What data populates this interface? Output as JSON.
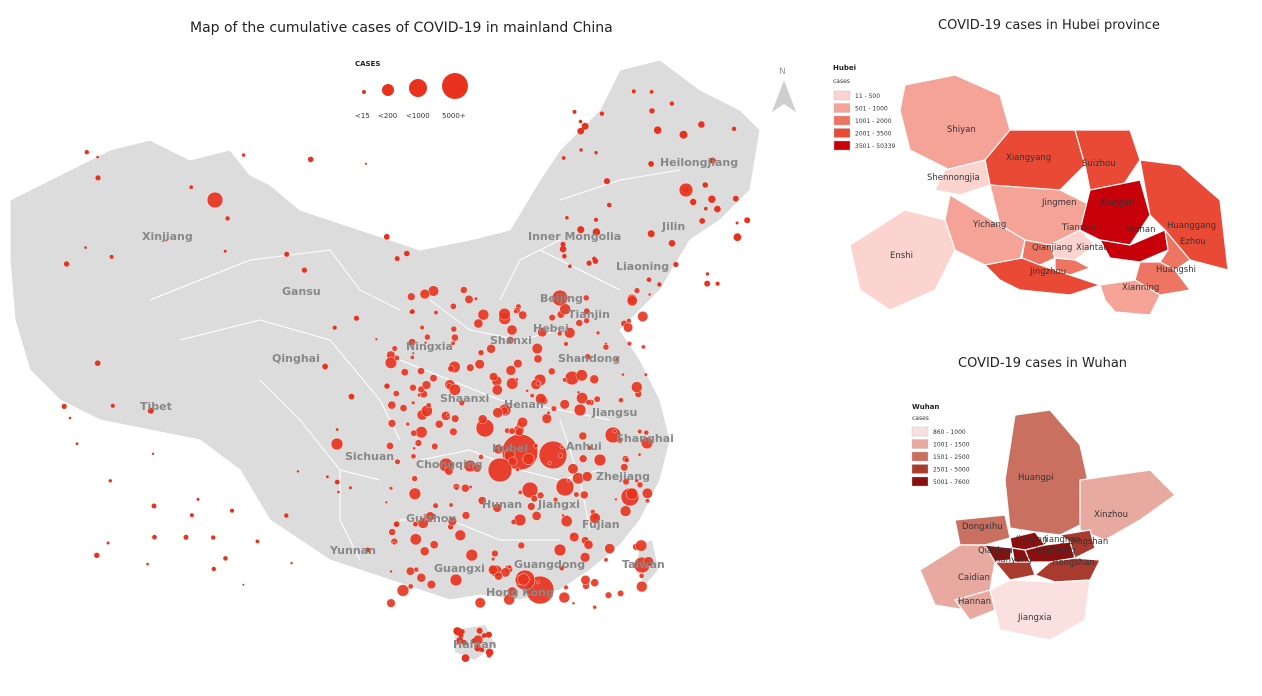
{
  "titles": {
    "main": "Map of the cumulative cases of COVID-19 in mainland China",
    "hubei": "COVID-19 cases in Hubei province",
    "wuhan": "COVID-19 cases in Wuhan"
  },
  "size_legend": {
    "title": "CASES",
    "items": [
      "<15",
      "<200",
      "<1000",
      "5000+"
    ]
  },
  "north_label": "N",
  "china_labels": [
    "Heilongjiang",
    "Jilin",
    "Liaoning",
    "Inner Mongolia",
    "Xinjiang",
    "Gansu",
    "Beijing",
    "Tianjin",
    "Hebei",
    "Ningxia",
    "Shanxi",
    "Shandong",
    "Qinghai",
    "Shaanxi",
    "Henan",
    "Jiangsu",
    "Tibet",
    "Sichuan",
    "Chongqing",
    "Hubei",
    "Anhui",
    "Shanghai",
    "Zhejiang",
    "Hunan",
    "Jiangxi",
    "Guizhou",
    "Fujian",
    "Yunnan",
    "Guangxi",
    "Guangdong",
    "Taiwan",
    "Hong Kong",
    "Hainan"
  ],
  "hubei": {
    "legend_title": "Hubei",
    "legend_subtitle": "cases",
    "legend_items": [
      "11 - 500",
      "501 - 1000",
      "1001 - 2000",
      "2001 - 3500",
      "3501 - 50339"
    ],
    "legend_colors": [
      "#fbd3cf",
      "#f5a297",
      "#ef7563",
      "#e84a36",
      "#c8000a"
    ],
    "regions": [
      "Shiyan",
      "Xiangyang",
      "Suizhou",
      "Shennongjia",
      "Jingmen",
      "Xiaogan",
      "Huanggang",
      "Yichang",
      "Tianmen",
      "Wuhan",
      "Ezhou",
      "Enshi",
      "Qianjiang",
      "Xiantao",
      "Huangshi",
      "Jingzhou",
      "Xianning"
    ]
  },
  "wuhan": {
    "legend_title": "Wuhan",
    "legend_subtitle": "cases",
    "legend_items": [
      "860 - 1000",
      "1001 - 1500",
      "1501 - 2500",
      "2501 - 5000",
      "5001 - 7600"
    ],
    "legend_colors": [
      "#fbe0e0",
      "#e8aaa0",
      "#c97060",
      "#a83a2e",
      "#8a0f0f"
    ],
    "regions": [
      "Huangpi",
      "Xinzhou",
      "Dongxihu",
      "Jiangan",
      "Qiaokou",
      "Jianghan",
      "Wuchang",
      "Qingshan",
      "Hanyang",
      "Hongshan",
      "Caidian",
      "Hannan",
      "Jiangxia"
    ]
  },
  "colors": {
    "bubble": "#e8321e",
    "land": "#dcdcdc",
    "border": "#ffffff"
  }
}
